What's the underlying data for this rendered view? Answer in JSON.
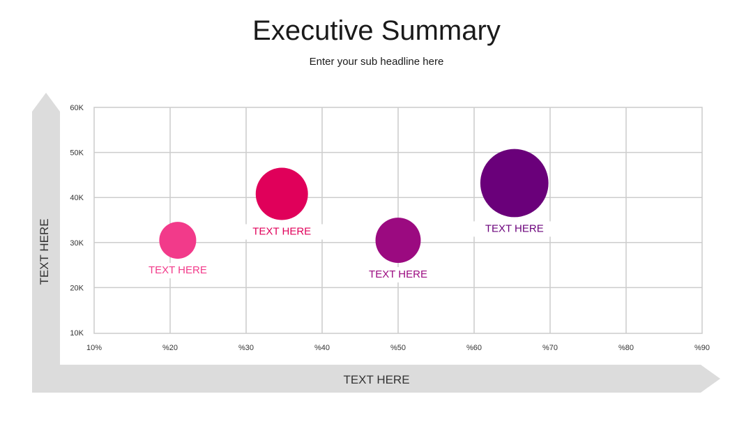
{
  "title": "Executive Summary",
  "subtitle": "Enter your sub headline here",
  "chart_data": {
    "type": "scatter",
    "xlabel": "TEXT HERE",
    "ylabel": "TEXT HERE",
    "x_ticks": [
      "10%",
      "%20",
      "%30",
      "%40",
      "%50",
      "%60",
      "%70",
      "%80",
      "%90"
    ],
    "y_ticks": [
      "10K",
      "20K",
      "30K",
      "40K",
      "50K",
      "60K"
    ],
    "xlim": [
      10,
      90
    ],
    "ylim": [
      10000,
      60000
    ],
    "grid": true,
    "points": [
      {
        "x": 21,
        "y": 30500,
        "size": 1,
        "label": "TEXT HERE",
        "color": "#F23A8A",
        "label_position": "below"
      },
      {
        "x": 34.7,
        "y": 40800,
        "size": 2,
        "label": "TEXT HERE",
        "color": "#E0005A",
        "label_position": "below"
      },
      {
        "x": 50,
        "y": 30500,
        "size": 1.5,
        "label": "TEXT HERE",
        "color": "#9B0A80",
        "label_position": "below"
      },
      {
        "x": 65.3,
        "y": 43200,
        "size": 3.4,
        "label": "TEXT HERE",
        "color": "#6A007A",
        "label_position": "below"
      }
    ]
  },
  "colors": {
    "grid": "#CCCCCC",
    "arrow": "#DCDCDC",
    "axis_text": "#333333"
  }
}
